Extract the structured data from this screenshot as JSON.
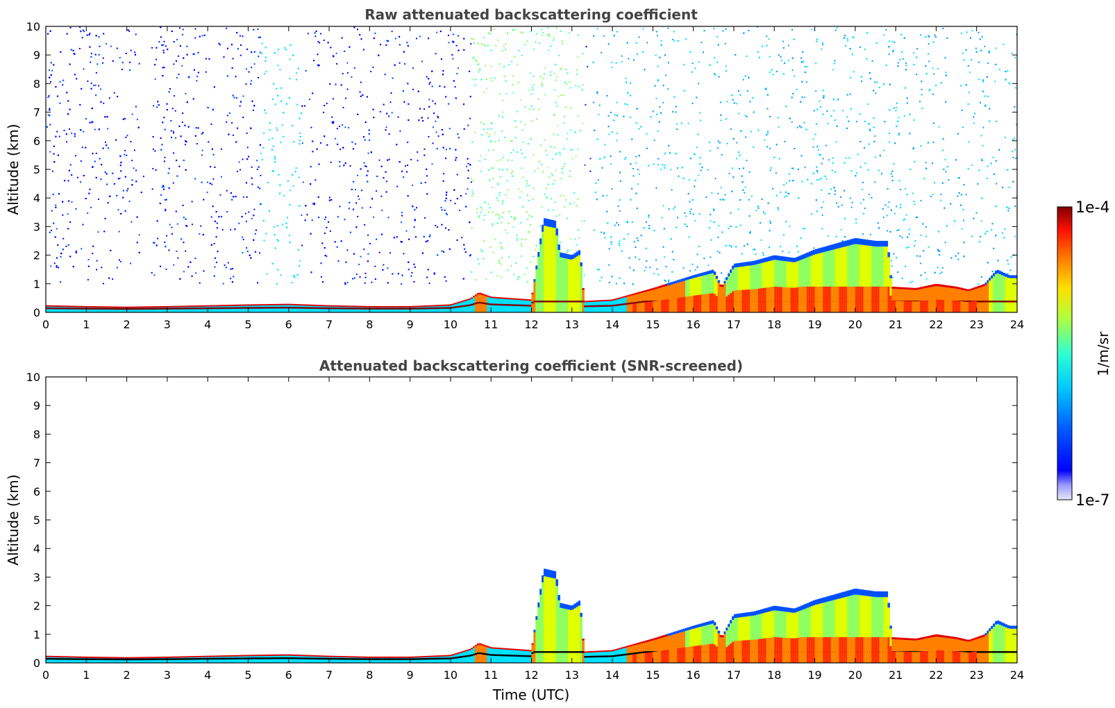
{
  "chart_data": [
    {
      "type": "heatmap",
      "title": "Raw attenuated backscattering coefficient",
      "xlabel": "",
      "ylabel": "Altitude (km)",
      "xlim": [
        0,
        24
      ],
      "ylim": [
        0,
        10
      ],
      "x_ticks": [
        "0",
        "1",
        "2",
        "3",
        "4",
        "5",
        "6",
        "7",
        "8",
        "9",
        "10",
        "11",
        "12",
        "13",
        "14",
        "15",
        "16",
        "17",
        "18",
        "19",
        "20",
        "21",
        "22",
        "23",
        "24"
      ],
      "y_ticks": [
        "0",
        "1",
        "2",
        "3",
        "4",
        "5",
        "6",
        "7",
        "8",
        "9",
        "10"
      ],
      "layer_top_km": [
        [
          0,
          0.25
        ],
        [
          1,
          0.22
        ],
        [
          2,
          0.2
        ],
        [
          3,
          0.22
        ],
        [
          4,
          0.25
        ],
        [
          5,
          0.28
        ],
        [
          6,
          0.3
        ],
        [
          7,
          0.25
        ],
        [
          8,
          0.22
        ],
        [
          9,
          0.22
        ],
        [
          10,
          0.28
        ],
        [
          10.5,
          0.5
        ],
        [
          10.7,
          0.7
        ],
        [
          11,
          0.55
        ],
        [
          11.5,
          0.5
        ],
        [
          12,
          0.45
        ],
        [
          12.3,
          3.3
        ],
        [
          12.6,
          3.2
        ],
        [
          12.7,
          2.1
        ],
        [
          13.0,
          2.0
        ],
        [
          13.2,
          2.2
        ],
        [
          13.3,
          0.4
        ],
        [
          14,
          0.45
        ],
        [
          14.5,
          0.65
        ],
        [
          15,
          0.85
        ],
        [
          16,
          1.3
        ],
        [
          16.5,
          1.5
        ],
        [
          16.7,
          0.9
        ],
        [
          17,
          1.7
        ],
        [
          17.5,
          1.8
        ],
        [
          18,
          2.0
        ],
        [
          18.5,
          1.9
        ],
        [
          19,
          2.2
        ],
        [
          19.5,
          2.4
        ],
        [
          20,
          2.6
        ],
        [
          20.5,
          2.5
        ],
        [
          20.8,
          2.5
        ],
        [
          20.9,
          0.9
        ],
        [
          21.5,
          0.85
        ],
        [
          22,
          1.0
        ],
        [
          22.5,
          0.9
        ],
        [
          22.8,
          0.8
        ],
        [
          23.2,
          1.0
        ],
        [
          23.5,
          1.5
        ],
        [
          23.8,
          1.3
        ],
        [
          24,
          1.3
        ]
      ]
    },
    {
      "type": "heatmap",
      "title": "Attenuated backscattering coefficient (SNR-screened)",
      "xlabel": "Time (UTC)",
      "ylabel": "Altitude (km)",
      "xlim": [
        0,
        24
      ],
      "ylim": [
        0,
        10
      ],
      "x_ticks": [
        "0",
        "1",
        "2",
        "3",
        "4",
        "5",
        "6",
        "7",
        "8",
        "9",
        "10",
        "11",
        "12",
        "13",
        "14",
        "15",
        "16",
        "17",
        "18",
        "19",
        "20",
        "21",
        "22",
        "23",
        "24"
      ],
      "y_ticks": [
        "0",
        "1",
        "2",
        "3",
        "4",
        "5",
        "6",
        "7",
        "8",
        "9",
        "10"
      ]
    }
  ],
  "colorbar": {
    "max_label": "1e-4",
    "min_label": "1e-7",
    "unit": "1/m/sr",
    "colors": [
      "#e8e8f8",
      "#c8c8f0",
      "#9999ff",
      "#0000ff",
      "#0050ff",
      "#00a0ff",
      "#00e0ff",
      "#40ffd0",
      "#90ff60",
      "#e0ff00",
      "#ffd000",
      "#ff8000",
      "#ff3000",
      "#e00000",
      "#800000"
    ]
  }
}
